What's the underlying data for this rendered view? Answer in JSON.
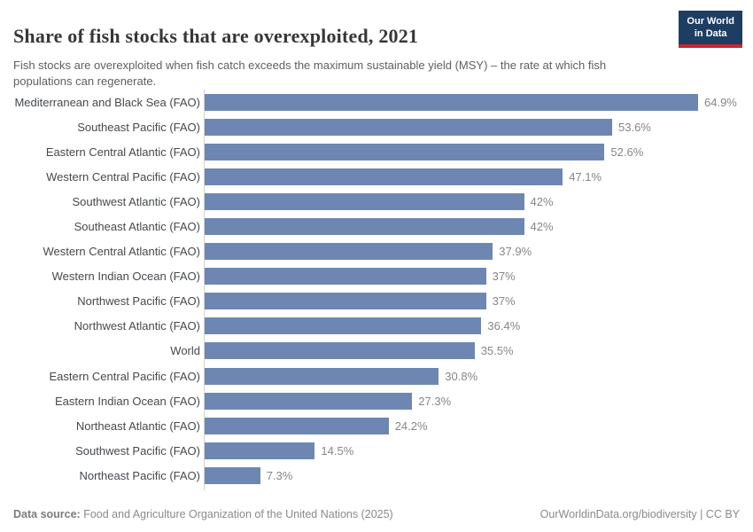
{
  "header": {
    "title": "Share of fish stocks that are overexploited, 2021",
    "subtitle": "Fish stocks are overexploited when fish catch exceeds the maximum sustainable yield (MSY) – the rate at which fish populations can regenerate.",
    "logo": {
      "line1": "Our World",
      "line2": "in Data"
    }
  },
  "chart_data": {
    "type": "bar",
    "orientation": "horizontal",
    "title": "Share of fish stocks that are overexploited, 2021",
    "xlabel": "",
    "ylabel": "",
    "xlim": [
      0,
      65
    ],
    "grid": false,
    "legend": false,
    "unit": "%",
    "bar_color": "#6e87b2",
    "categories": [
      "Mediterranean and Black Sea (FAO)",
      "Southeast Pacific (FAO)",
      "Eastern Central Atlantic (FAO)",
      "Western Central Pacific (FAO)",
      "Southwest Atlantic (FAO)",
      "Southeast Atlantic (FAO)",
      "Western Central Atlantic (FAO)",
      "Western Indian Ocean (FAO)",
      "Northwest Pacific (FAO)",
      "Northwest Atlantic (FAO)",
      "World",
      "Eastern Central Pacific (FAO)",
      "Eastern Indian Ocean (FAO)",
      "Northeast Atlantic (FAO)",
      "Southwest Pacific (FAO)",
      "Northeast Pacific (FAO)"
    ],
    "values": [
      64.9,
      53.6,
      52.6,
      47.1,
      42,
      42,
      37.9,
      37,
      37,
      36.4,
      35.5,
      30.8,
      27.3,
      24.2,
      14.5,
      7.3
    ],
    "value_labels": [
      "64.9%",
      "53.6%",
      "52.6%",
      "47.1%",
      "42%",
      "42%",
      "37.9%",
      "37%",
      "37%",
      "36.4%",
      "35.5%",
      "30.8%",
      "27.3%",
      "24.2%",
      "14.5%",
      "7.3%"
    ]
  },
  "footer": {
    "source_label": "Data source:",
    "source_text": " Food and Agriculture Organization of the United Nations (2025)",
    "right_text": "OurWorldinData.org/biodiversity | CC BY"
  },
  "colors": {
    "bar": "#6e87b2",
    "logo_bg": "#1d3d63",
    "logo_stripe": "#d1232a",
    "axis": "#d2d2d2"
  }
}
